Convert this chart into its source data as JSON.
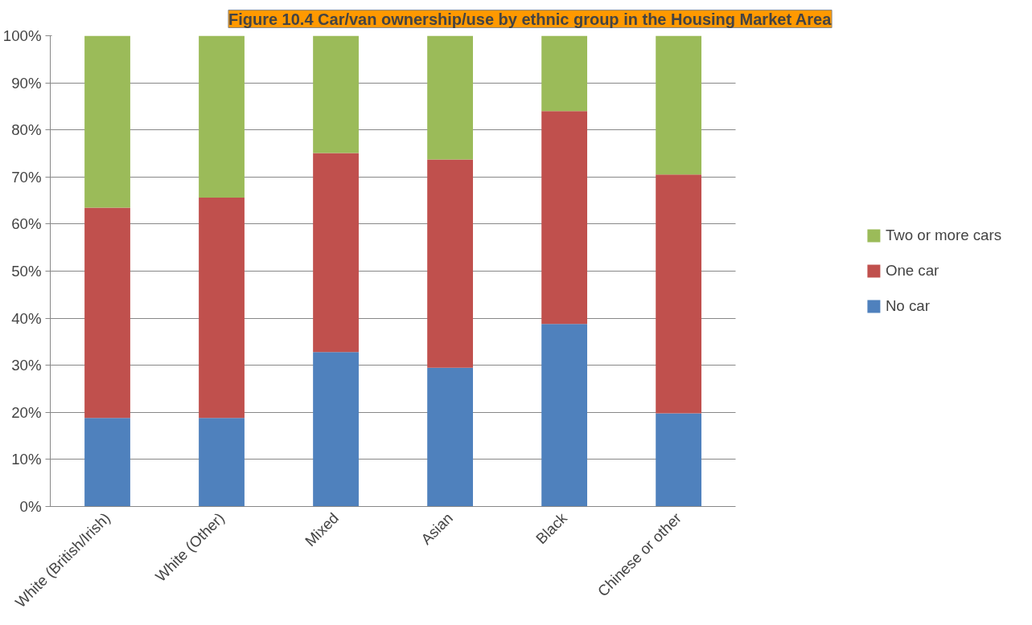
{
  "chart_data": {
    "type": "bar",
    "stacked": true,
    "title": "Figure 10.4 Car/van ownership/use by ethnic group in the Housing Market Area",
    "categories": [
      "White (British/Irish)",
      "White (Other)",
      "Mixed",
      "Asian",
      "Black",
      "Chinese or other"
    ],
    "series": [
      {
        "name": "No car",
        "color": "#4f81bd",
        "values": [
          18.8,
          18.8,
          32.8,
          29.5,
          38.8,
          19.8
        ]
      },
      {
        "name": "One car",
        "color": "#c0504d",
        "values": [
          44.7,
          46.8,
          42.3,
          44.2,
          45.2,
          50.7
        ]
      },
      {
        "name": "Two or more cars",
        "color": "#9bbb59",
        "values": [
          36.5,
          34.4,
          24.9,
          26.3,
          16.0,
          29.5
        ]
      }
    ],
    "ylim": [
      0,
      100
    ],
    "yticks": [
      {
        "value": 0,
        "label": "0%"
      },
      {
        "value": 10,
        "label": "10%"
      },
      {
        "value": 20,
        "label": "20%"
      },
      {
        "value": 30,
        "label": "30%"
      },
      {
        "value": 40,
        "label": "40%"
      },
      {
        "value": 50,
        "label": "50%"
      },
      {
        "value": 60,
        "label": "60%"
      },
      {
        "value": 70,
        "label": "70%"
      },
      {
        "value": 80,
        "label": "80%"
      },
      {
        "value": 90,
        "label": "90%"
      },
      {
        "value": 100,
        "label": "100%"
      }
    ],
    "grid": "y",
    "legend": "right"
  }
}
